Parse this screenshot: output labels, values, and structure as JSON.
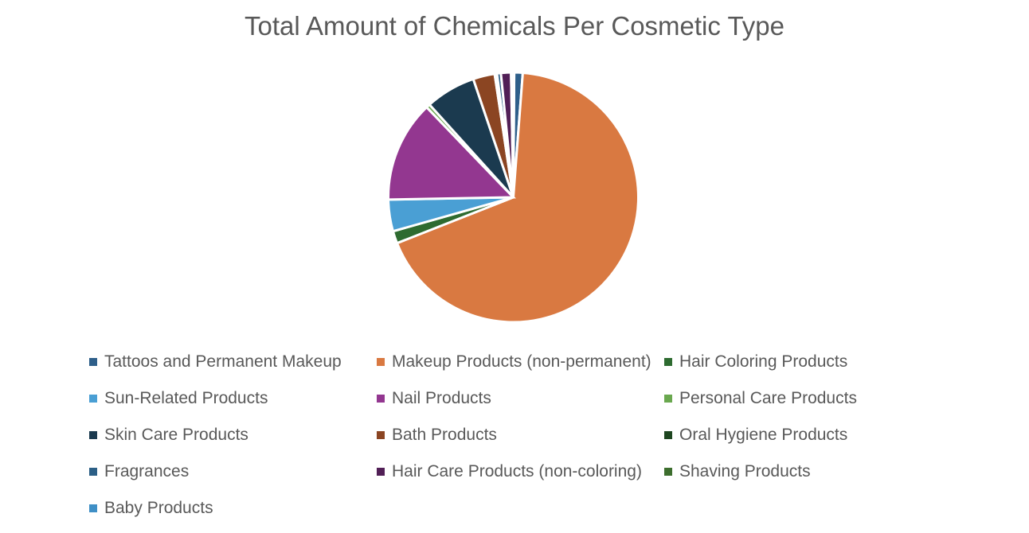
{
  "chart_data": {
    "type": "pie",
    "title": "Total Amount of Chemicals Per Cosmetic Type",
    "unit": "percent share (estimated)",
    "legend_position": "bottom",
    "slices": [
      {
        "label": "Tattoos and Permanent Makeup",
        "value": 1.1,
        "color": "#2e5f8a"
      },
      {
        "label": "Makeup Products (non-permanent)",
        "value": 67.8,
        "color": "#d97941"
      },
      {
        "label": "Hair Coloring Products",
        "value": 1.6,
        "color": "#2e6b30"
      },
      {
        "label": "Sun-Related Products",
        "value": 4.1,
        "color": "#4a9fd4"
      },
      {
        "label": "Nail Products",
        "value": 13.1,
        "color": "#933790"
      },
      {
        "label": "Personal Care Products",
        "value": 0.5,
        "color": "#6aa84f"
      },
      {
        "label": "Skin Care Products",
        "value": 6.5,
        "color": "#1b3a4f"
      },
      {
        "label": "Bath Products",
        "value": 2.8,
        "color": "#8b4522"
      },
      {
        "label": "Oral Hygiene Products",
        "value": 0.3,
        "color": "#1e4620"
      },
      {
        "label": "Fragrances",
        "value": 0.5,
        "color": "#2b5f86"
      },
      {
        "label": "Hair Care Products (non-coloring)",
        "value": 1.3,
        "color": "#511f56"
      },
      {
        "label": "Shaving Products",
        "value": 0.2,
        "color": "#3d6e2e"
      },
      {
        "label": "Baby Products",
        "value": 0.2,
        "color": "#3f8fc6"
      }
    ]
  }
}
